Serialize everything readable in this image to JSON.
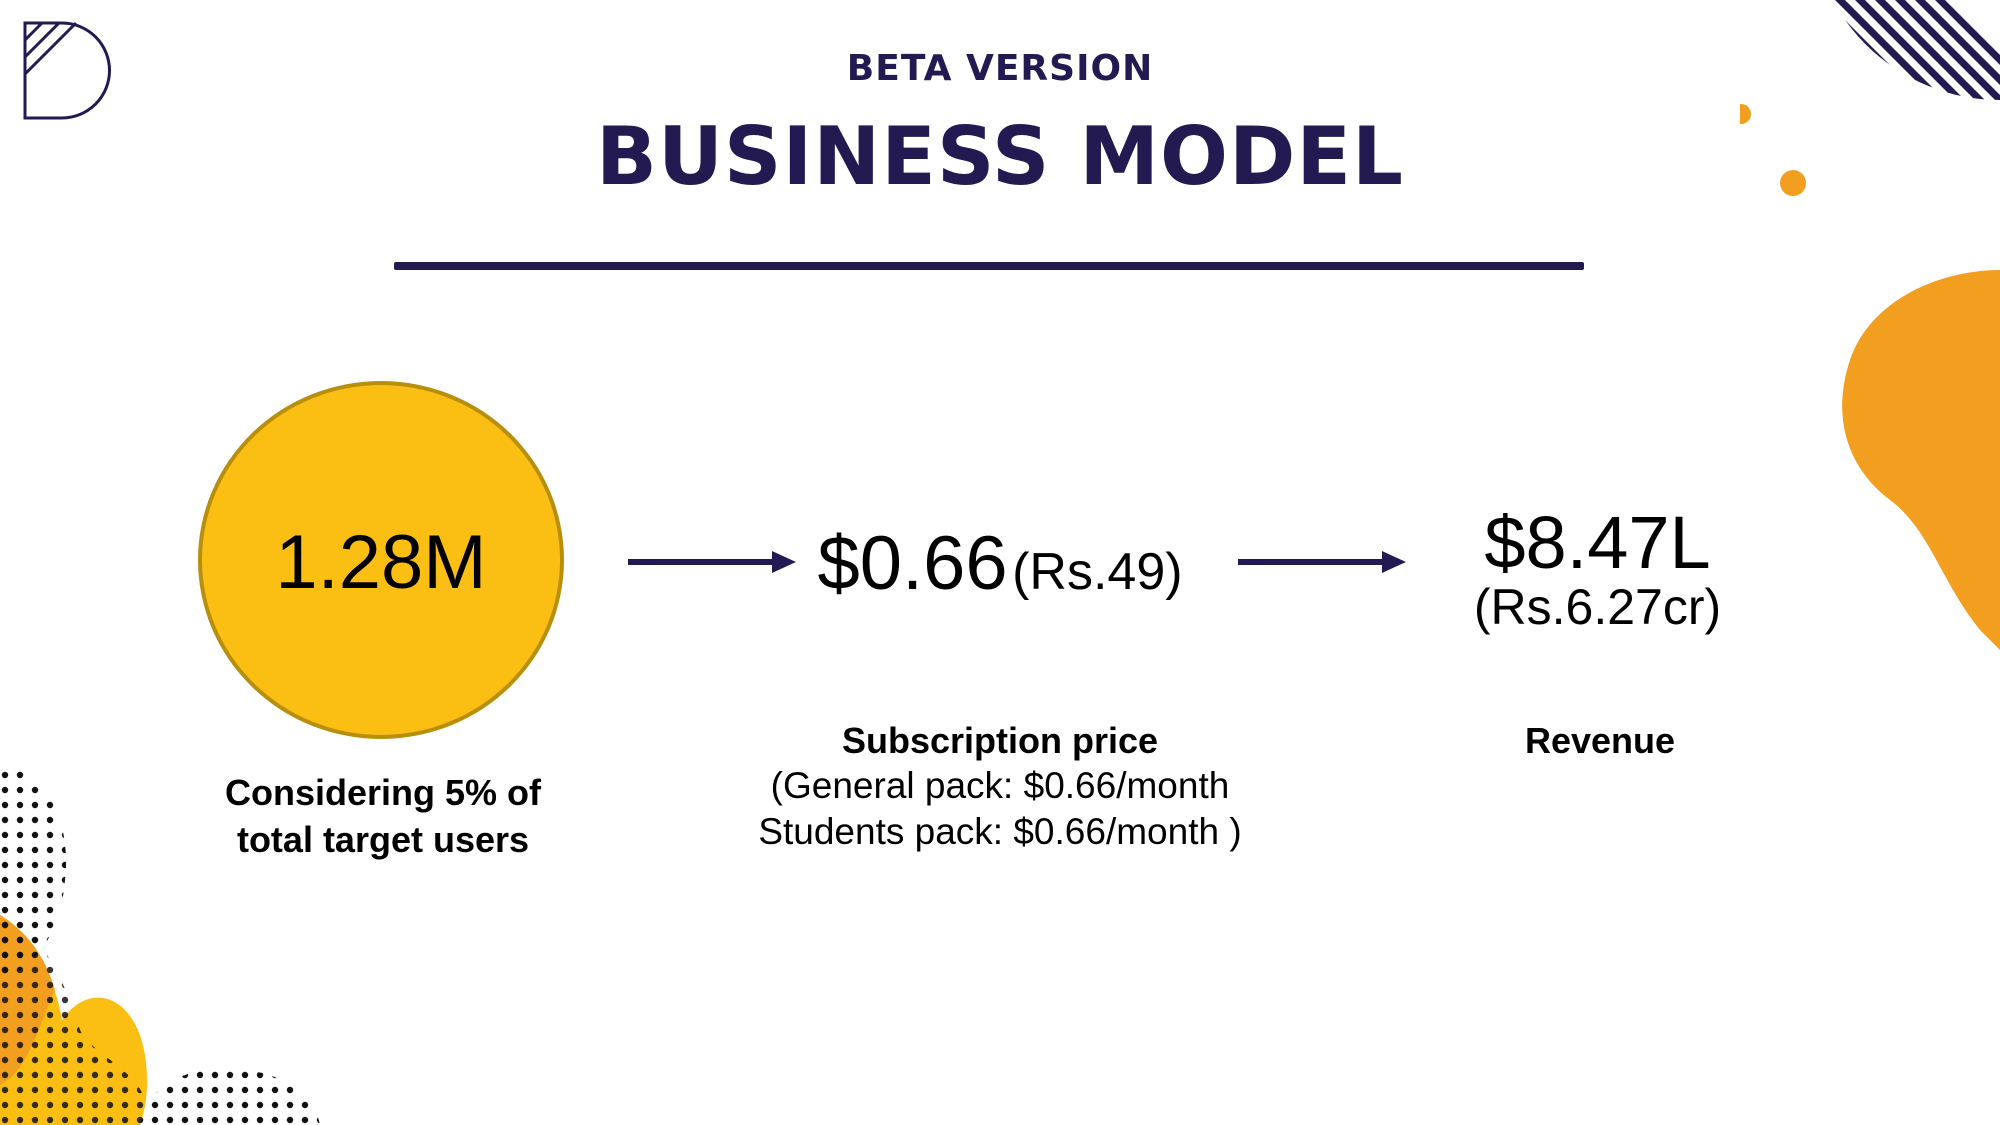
{
  "header": {
    "eyebrow": "BETA VERSION",
    "title": "BUSINESS MODEL"
  },
  "users": {
    "value": "1.28M",
    "caption_line1": "Considering 5% of",
    "caption_line2": "total target users"
  },
  "subscription": {
    "value": "$0.66",
    "value_local": "(Rs.49)",
    "caption_title": "Subscription price",
    "caption_line1": "(General pack: $0.66/month",
    "caption_line2": "Students pack: $0.66/month )"
  },
  "revenue": {
    "value": "$8.47L",
    "value_local": "(Rs.6.27cr)",
    "caption_title": "Revenue"
  },
  "colors": {
    "navy": "#231a52",
    "yellow": "#fbbf14",
    "orange": "#f29e1f"
  }
}
